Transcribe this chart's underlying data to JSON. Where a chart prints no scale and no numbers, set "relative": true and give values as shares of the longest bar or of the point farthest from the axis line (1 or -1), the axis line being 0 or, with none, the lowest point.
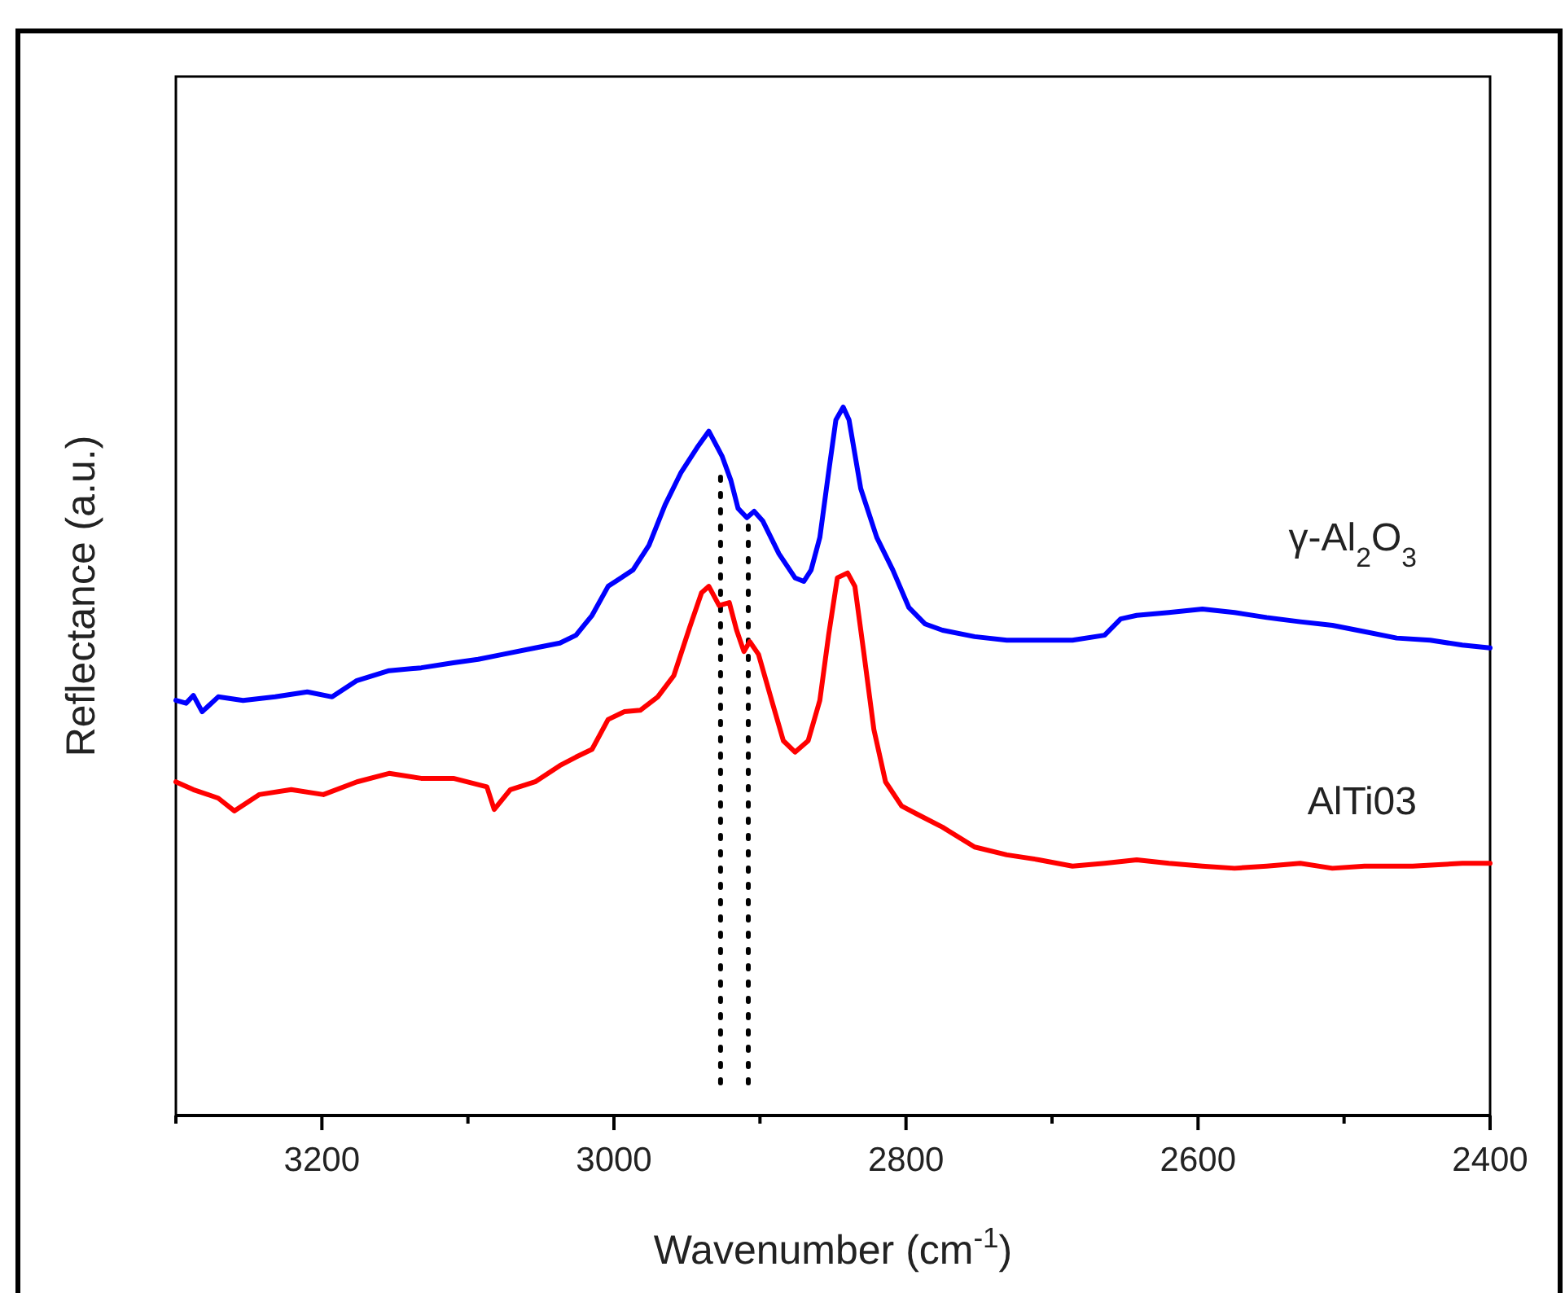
{
  "chart_data": {
    "type": "line",
    "xlabel": "Wavenumber (cm$^{-1}$)",
    "ylabel": "Reflectance (a.u.)",
    "relative": true,
    "legend": false,
    "grid": false,
    "line_style": "solid",
    "marker": "none",
    "xlim": [
      3300,
      2400
    ],
    "xticks": [
      {
        "value": 3300,
        "label": null
      },
      3200,
      {
        "value": 3100,
        "label": null
      },
      3000,
      {
        "value": 2900,
        "label": null
      },
      2800,
      {
        "value": 2700,
        "label": null
      },
      2600,
      {
        "value": 2500,
        "label": null
      },
      2400
    ],
    "ref_lines": [
      {
        "axis": "x",
        "value": 2927,
        "color": "#000000",
        "line_style": "dotted"
      },
      {
        "axis": "x",
        "value": 2908,
        "color": "#000000",
        "line_style": "dotted"
      }
    ],
    "series": [
      {
        "name": "γ-Al$_{2}$O$_{3}$",
        "color": "#0000ff",
        "x": [
          3300,
          3293,
          3288,
          3282,
          3271,
          3254,
          3232,
          3210,
          3193,
          3176,
          3154,
          3132,
          3110,
          3093,
          3076,
          3054,
          3037,
          3026,
          3015,
          3004,
          2987,
          2976,
          2965,
          2954,
          2943,
          2935,
          2926,
          2920,
          2915,
          2909,
          2904,
          2898,
          2887,
          2876,
          2870,
          2865,
          2859,
          2853,
          2848,
          2843,
          2839,
          2831,
          2820,
          2809,
          2798,
          2787,
          2775,
          2753,
          2731,
          2709,
          2686,
          2664,
          2653,
          2642,
          2620,
          2597,
          2575,
          2553,
          2530,
          2508,
          2486,
          2464,
          2441,
          2419,
          2400
        ],
        "values": [
          0.586,
          0.582,
          0.593,
          0.57,
          0.591,
          0.586,
          0.591,
          0.598,
          0.591,
          0.614,
          0.628,
          0.632,
          0.639,
          0.644,
          0.651,
          0.66,
          0.667,
          0.678,
          0.706,
          0.747,
          0.77,
          0.805,
          0.862,
          0.908,
          0.943,
          0.966,
          0.931,
          0.897,
          0.857,
          0.844,
          0.853,
          0.839,
          0.793,
          0.759,
          0.754,
          0.77,
          0.816,
          0.908,
          0.982,
          1,
          0.982,
          0.885,
          0.816,
          0.77,
          0.717,
          0.694,
          0.685,
          0.676,
          0.671,
          0.671,
          0.671,
          0.678,
          0.701,
          0.706,
          0.71,
          0.715,
          0.71,
          0.703,
          0.697,
          0.692,
          0.683,
          0.674,
          0.671,
          0.664,
          0.66
        ]
      },
      {
        "name": "AlTi03",
        "color": "#ff0000",
        "x": [
          3300,
          3288,
          3271,
          3260,
          3243,
          3221,
          3199,
          3176,
          3154,
          3132,
          3110,
          3087,
          3082,
          3071,
          3054,
          3037,
          3026,
          3015,
          3004,
          2993,
          2982,
          2970,
          2959,
          2948,
          2940,
          2935,
          2928,
          2921,
          2916,
          2911,
          2907,
          2901,
          2892,
          2884,
          2876,
          2867,
          2859,
          2853,
          2847,
          2840,
          2835,
          2829,
          2822,
          2814,
          2803,
          2792,
          2775,
          2753,
          2731,
          2709,
          2686,
          2664,
          2642,
          2620,
          2597,
          2575,
          2553,
          2530,
          2508,
          2486,
          2453,
          2419,
          2400
        ],
        "values": [
          0.471,
          0.46,
          0.448,
          0.43,
          0.453,
          0.46,
          0.453,
          0.471,
          0.483,
          0.476,
          0.476,
          0.464,
          0.432,
          0.46,
          0.471,
          0.494,
          0.506,
          0.517,
          0.559,
          0.57,
          0.572,
          0.591,
          0.621,
          0.69,
          0.738,
          0.747,
          0.72,
          0.724,
          0.685,
          0.655,
          0.669,
          0.651,
          0.586,
          0.529,
          0.513,
          0.529,
          0.586,
          0.678,
          0.759,
          0.766,
          0.747,
          0.655,
          0.545,
          0.471,
          0.437,
          0.425,
          0.407,
          0.379,
          0.368,
          0.361,
          0.352,
          0.356,
          0.361,
          0.356,
          0.352,
          0.349,
          0.352,
          0.356,
          0.349,
          0.352,
          0.352,
          0.356,
          0.356
        ]
      }
    ]
  }
}
